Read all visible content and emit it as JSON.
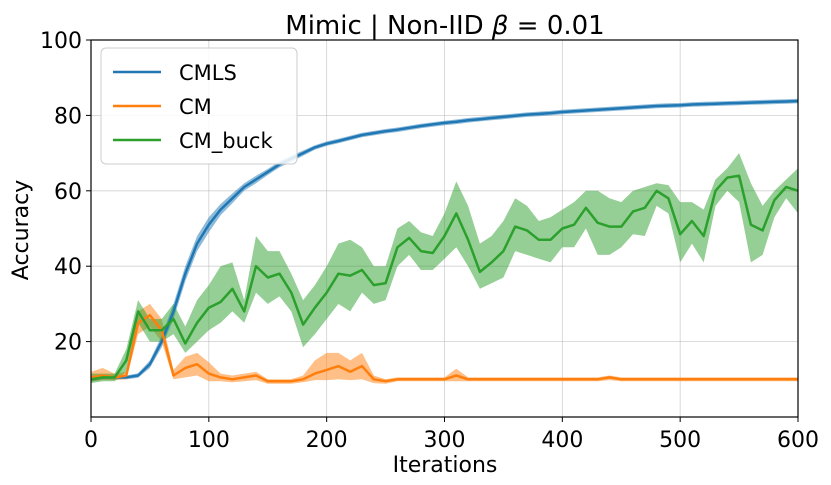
{
  "chart_data": {
    "type": "line",
    "title_main": "Mimic | Non-IID ",
    "title_beta": "β",
    "title_tail": " = 0.01",
    "xlabel": "Iterations",
    "ylabel": "Accuracy",
    "xlim": [
      0,
      600
    ],
    "ylim": [
      0,
      100
    ],
    "xticks": [
      0,
      100,
      200,
      300,
      400,
      500,
      600
    ],
    "yticks": [
      20,
      40,
      60,
      80,
      100
    ],
    "grid": true,
    "legend_position": "top-left",
    "x": [
      0,
      10,
      20,
      30,
      40,
      50,
      60,
      70,
      80,
      90,
      100,
      110,
      120,
      130,
      140,
      150,
      160,
      170,
      180,
      190,
      200,
      210,
      220,
      230,
      240,
      250,
      260,
      270,
      280,
      290,
      300,
      310,
      320,
      330,
      340,
      350,
      360,
      370,
      380,
      390,
      400,
      410,
      420,
      430,
      440,
      450,
      460,
      470,
      480,
      490,
      500,
      510,
      520,
      530,
      540,
      550,
      560,
      570,
      580,
      590,
      600
    ],
    "series": [
      {
        "name": "CMLS",
        "color": "#1f77b4",
        "values": [
          10.0,
          10.5,
          10.5,
          10.5,
          11.0,
          14.0,
          20.0,
          28.0,
          38.0,
          46.0,
          51.0,
          55.0,
          58.0,
          61.0,
          63.0,
          65.0,
          67.0,
          68.5,
          70.0,
          71.5,
          72.5,
          73.2,
          74.0,
          74.8,
          75.3,
          75.8,
          76.2,
          76.7,
          77.2,
          77.6,
          78.0,
          78.3,
          78.7,
          79.0,
          79.3,
          79.6,
          79.9,
          80.2,
          80.4,
          80.6,
          80.9,
          81.1,
          81.3,
          81.5,
          81.7,
          81.9,
          82.1,
          82.3,
          82.5,
          82.6,
          82.7,
          82.9,
          83.0,
          83.1,
          83.2,
          83.3,
          83.4,
          83.5,
          83.6,
          83.7,
          83.8
        ],
        "upper": [
          10.8,
          11.0,
          11.0,
          11.0,
          11.6,
          15.0,
          21.5,
          30.0,
          40.0,
          48.0,
          53.0,
          56.5,
          59.3,
          62.0,
          64.0,
          65.8,
          67.8,
          69.3,
          70.7,
          72.1,
          73.1,
          73.8,
          74.6,
          75.4,
          75.9,
          76.4,
          76.8,
          77.3,
          77.8,
          78.2,
          78.6,
          78.9,
          79.3,
          79.6,
          79.9,
          80.2,
          80.5,
          80.8,
          81.0,
          81.2,
          81.5,
          81.7,
          81.9,
          82.1,
          82.3,
          82.5,
          82.7,
          82.9,
          83.1,
          83.2,
          83.3,
          83.5,
          83.6,
          83.7,
          83.8,
          83.9,
          84.0,
          84.1,
          84.2,
          84.3,
          84.4
        ],
        "lower": [
          9.4,
          10.0,
          10.0,
          10.0,
          10.4,
          13.0,
          18.5,
          26.0,
          36.0,
          44.0,
          49.0,
          53.5,
          56.7,
          60.0,
          62.0,
          64.2,
          66.2,
          67.7,
          69.3,
          70.9,
          71.9,
          72.6,
          73.4,
          74.2,
          74.7,
          75.2,
          75.6,
          76.1,
          76.6,
          77.0,
          77.4,
          77.7,
          78.1,
          78.4,
          78.7,
          79.0,
          79.3,
          79.6,
          79.8,
          80.0,
          80.3,
          80.5,
          80.7,
          80.9,
          81.1,
          81.3,
          81.5,
          81.7,
          81.9,
          82.0,
          82.1,
          82.3,
          82.4,
          82.5,
          82.6,
          82.7,
          82.8,
          82.9,
          83.0,
          83.1,
          83.2
        ]
      },
      {
        "name": "CM",
        "color": "#ff7f0e",
        "values": [
          10.5,
          11.0,
          10.5,
          11.0,
          25.0,
          27.0,
          23.0,
          11.0,
          13.0,
          14.0,
          11.5,
          10.5,
          10.0,
          10.5,
          11.0,
          9.5,
          9.5,
          9.5,
          10.0,
          11.5,
          12.5,
          13.5,
          12.0,
          13.5,
          10.0,
          9.5,
          10.0,
          10.0,
          10.0,
          10.0,
          10.0,
          11.0,
          10.0,
          10.0,
          10.0,
          10.0,
          10.0,
          10.0,
          10.0,
          10.0,
          10.0,
          10.0,
          10.0,
          10.0,
          10.5,
          10.0,
          10.0,
          10.0,
          10.0,
          10.0,
          10.0,
          10.0,
          10.0,
          10.0,
          10.0,
          10.0,
          10.0,
          10.0,
          10.0,
          10.0,
          10.0
        ],
        "upper": [
          12.0,
          13.0,
          11.5,
          12.0,
          28.0,
          30.0,
          26.0,
          12.5,
          16.0,
          17.0,
          14.5,
          11.5,
          11.0,
          11.5,
          12.0,
          10.0,
          10.0,
          10.0,
          11.0,
          15.0,
          17.0,
          17.0,
          15.0,
          17.0,
          11.0,
          10.0,
          10.5,
          10.5,
          10.5,
          10.5,
          10.5,
          12.8,
          10.5,
          10.5,
          10.5,
          10.5,
          10.5,
          10.5,
          10.5,
          10.5,
          10.5,
          10.5,
          10.5,
          10.5,
          11.0,
          10.5,
          10.5,
          10.5,
          10.5,
          10.5,
          10.5,
          10.5,
          10.5,
          10.5,
          10.5,
          10.5,
          10.5,
          10.5,
          10.5,
          10.5,
          10.5
        ],
        "lower": [
          9.5,
          9.8,
          9.8,
          10.0,
          22.0,
          24.0,
          20.0,
          10.0,
          10.5,
          11.0,
          9.5,
          9.5,
          9.2,
          9.5,
          9.8,
          8.8,
          8.8,
          8.8,
          9.2,
          9.8,
          9.8,
          10.0,
          9.8,
          10.0,
          9.0,
          8.8,
          9.5,
          9.5,
          9.5,
          9.5,
          9.5,
          9.5,
          9.5,
          9.5,
          9.5,
          9.5,
          9.5,
          9.5,
          9.5,
          9.5,
          9.5,
          9.5,
          9.5,
          9.5,
          9.8,
          9.5,
          9.5,
          9.5,
          9.5,
          9.5,
          9.5,
          9.5,
          9.5,
          9.5,
          9.5,
          9.5,
          9.5,
          9.5,
          9.5,
          9.5,
          9.5
        ],
        "band_color": "#f7c59a"
      },
      {
        "name": "CM_buck",
        "color": "#2ca02c",
        "values": [
          10.0,
          10.5,
          10.5,
          15.0,
          28.0,
          23.0,
          23.0,
          26.0,
          19.5,
          25.0,
          29.0,
          30.5,
          34.0,
          28.0,
          40.0,
          37.0,
          38.0,
          33.0,
          24.5,
          29.0,
          33.0,
          38.0,
          37.5,
          39.0,
          35.0,
          35.5,
          45.0,
          47.5,
          44.0,
          43.5,
          48.0,
          54.0,
          47.0,
          38.5,
          41.0,
          44.0,
          50.5,
          49.5,
          47.0,
          47.0,
          50.0,
          51.0,
          55.5,
          51.5,
          50.5,
          50.5,
          54.5,
          55.5,
          60.0,
          58.0,
          48.5,
          52.0,
          48.0,
          60.0,
          63.5,
          64.0,
          51.0,
          49.5,
          57.5,
          61.0,
          60.0
        ],
        "upper": [
          11.5,
          11.5,
          11.5,
          18.0,
          31.0,
          26.0,
          26.0,
          30.0,
          24.0,
          31.0,
          35.0,
          40.0,
          41.0,
          31.0,
          48.0,
          44.0,
          44.0,
          38.0,
          31.0,
          35.0,
          40.0,
          46.0,
          47.0,
          45.0,
          40.0,
          40.0,
          50.0,
          52.0,
          49.0,
          48.0,
          54.0,
          62.5,
          56.0,
          46.0,
          48.0,
          52.0,
          58.0,
          56.0,
          52.0,
          53.0,
          55.0,
          57.0,
          60.0,
          60.0,
          58.0,
          57.0,
          60.0,
          61.0,
          62.0,
          61.5,
          57.0,
          57.0,
          55.0,
          63.0,
          66.0,
          70.0,
          62.0,
          56.0,
          60.0,
          63.0,
          66.0
        ],
        "lower": [
          9.0,
          9.5,
          9.5,
          12.0,
          25.0,
          20.0,
          20.0,
          22.0,
          17.0,
          20.0,
          23.0,
          25.0,
          28.0,
          25.0,
          33.0,
          30.0,
          32.0,
          28.0,
          18.5,
          22.0,
          26.0,
          30.0,
          28.0,
          33.0,
          30.0,
          31.0,
          40.0,
          43.0,
          39.0,
          39.0,
          42.0,
          45.0,
          40.0,
          34.0,
          35.5,
          37.0,
          44.0,
          43.0,
          42.0,
          41.0,
          45.0,
          45.0,
          50.0,
          43.0,
          43.0,
          45.0,
          48.5,
          48.0,
          56.0,
          54.0,
          41.0,
          46.0,
          41.0,
          56.0,
          60.0,
          57.0,
          41.0,
          43.0,
          53.0,
          58.0,
          54.0
        ],
        "band_color": "#97cf97"
      }
    ]
  }
}
